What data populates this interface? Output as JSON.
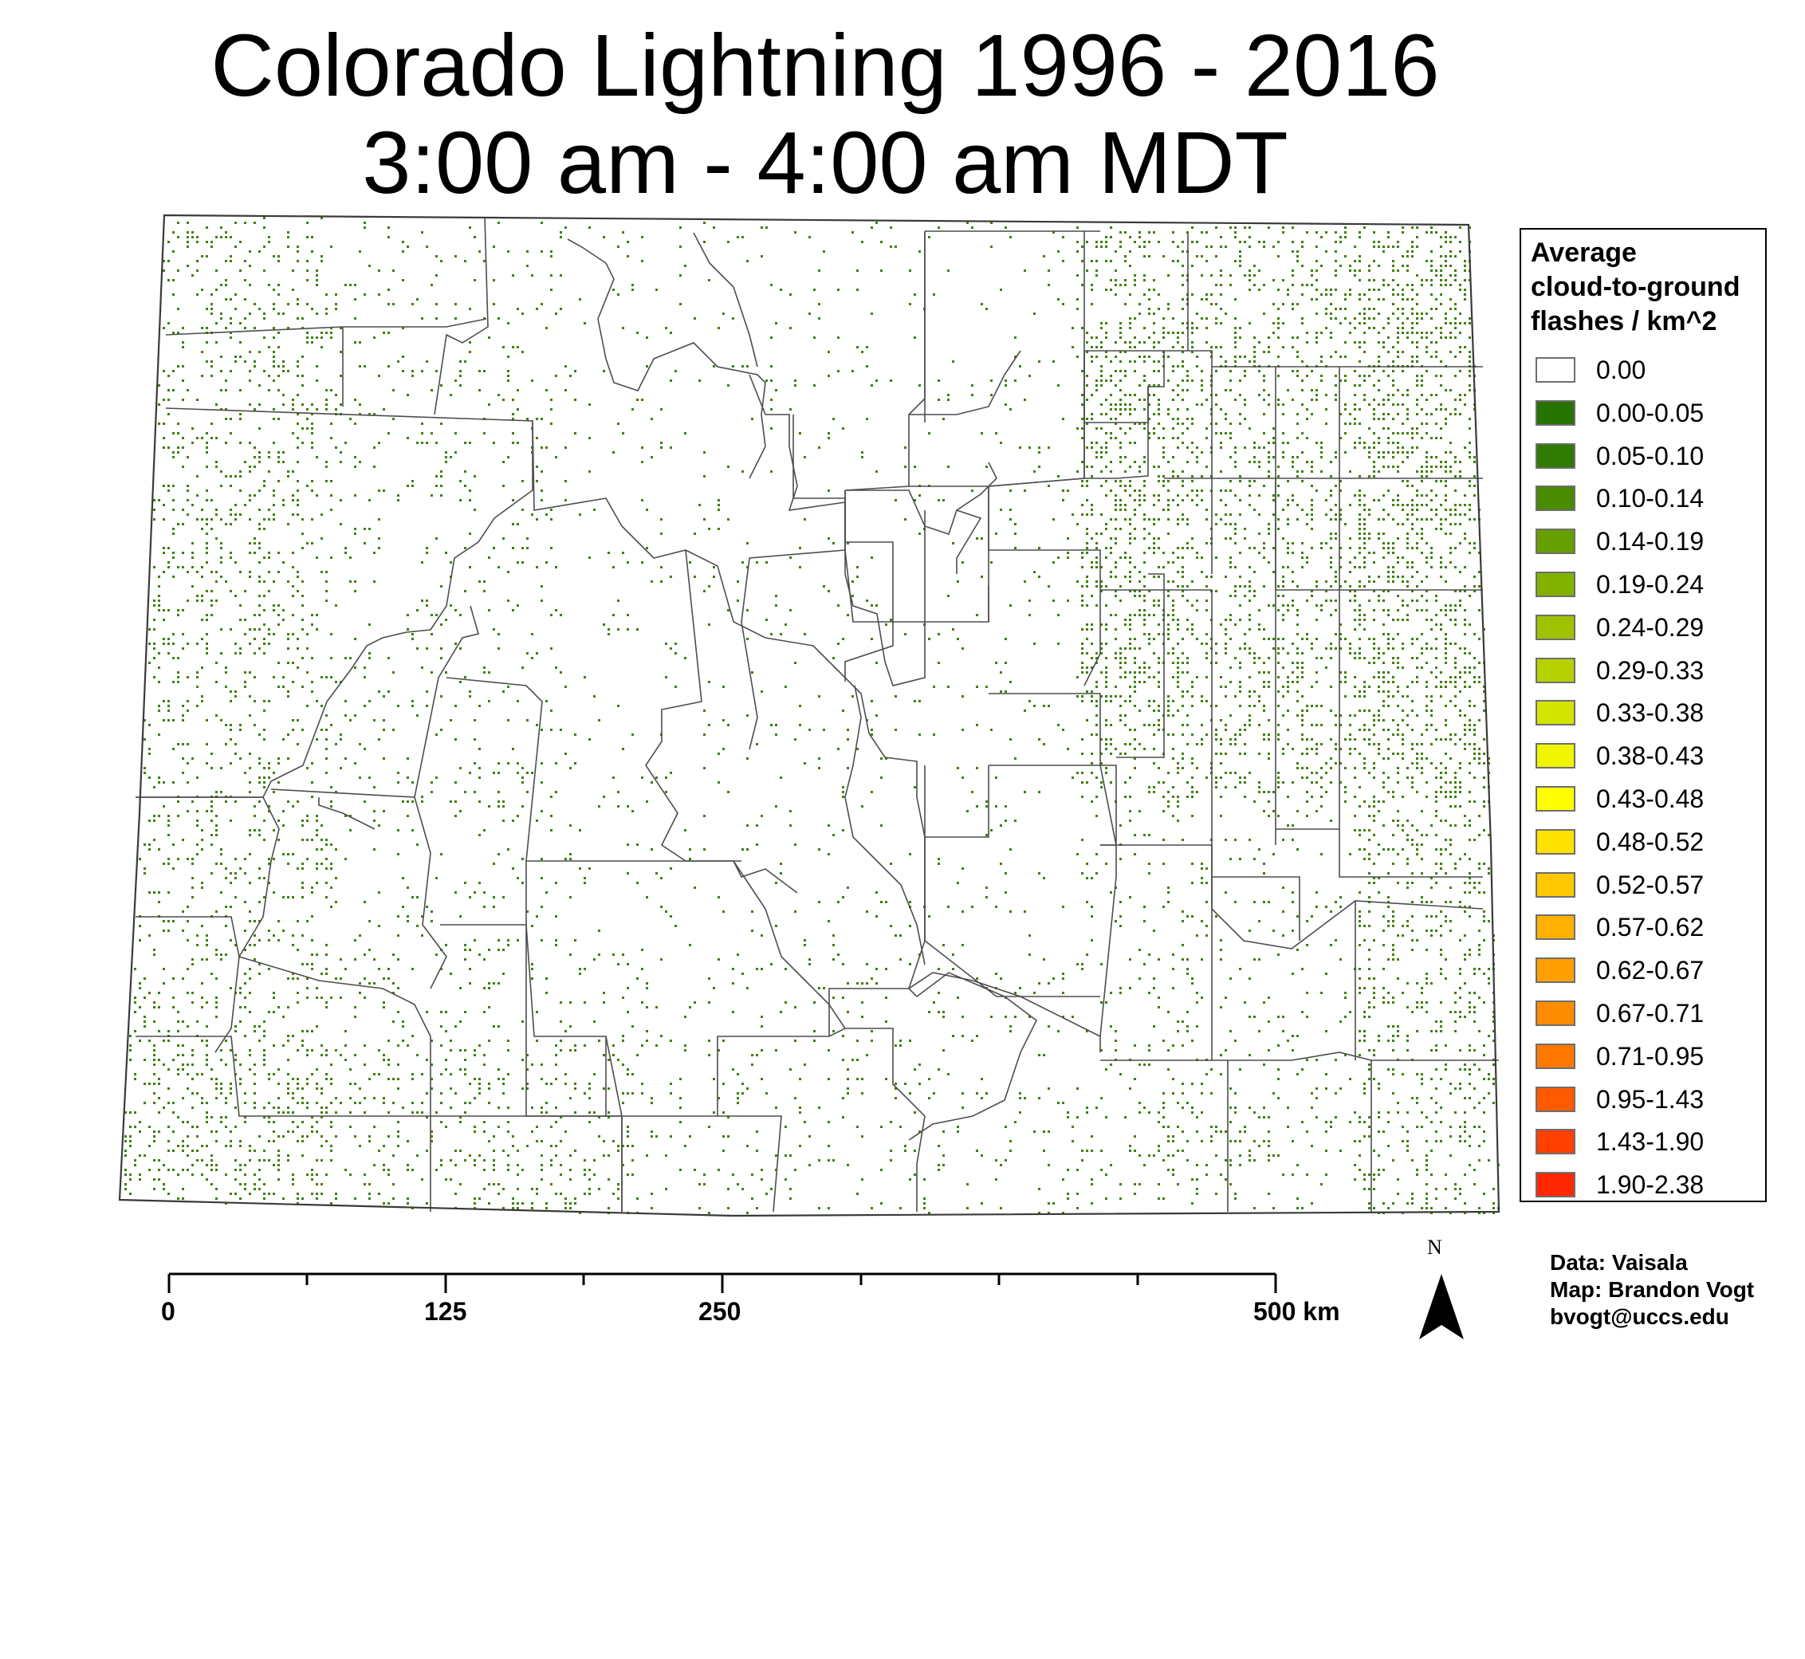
{
  "title": {
    "line1": "Colorado Lightning 1996 - 2016",
    "line2": "3:00 am - 4:00 am MDT"
  },
  "legend": {
    "title_lines": [
      "Average",
      "cloud-to-ground",
      "flashes / km^2"
    ],
    "items": [
      {
        "label": "0.00",
        "color": "#ffffff"
      },
      {
        "label": "0.00-0.05",
        "color": "#267300"
      },
      {
        "label": "0.05-0.10",
        "color": "#2f7a00"
      },
      {
        "label": "0.10-0.14",
        "color": "#4a8a00"
      },
      {
        "label": "0.14-0.19",
        "color": "#66a000"
      },
      {
        "label": "0.19-0.24",
        "color": "#82b100"
      },
      {
        "label": "0.24-0.29",
        "color": "#9fc300"
      },
      {
        "label": "0.29-0.33",
        "color": "#b5d100"
      },
      {
        "label": "0.33-0.38",
        "color": "#d2e400"
      },
      {
        "label": "0.38-0.43",
        "color": "#f0f500"
      },
      {
        "label": "0.43-0.48",
        "color": "#ffff00"
      },
      {
        "label": "0.48-0.52",
        "color": "#ffe100"
      },
      {
        "label": "0.52-0.57",
        "color": "#ffc800"
      },
      {
        "label": "0.57-0.62",
        "color": "#ffb000"
      },
      {
        "label": "0.62-0.67",
        "color": "#ffa000"
      },
      {
        "label": "0.67-0.71",
        "color": "#ff8c00"
      },
      {
        "label": "0.71-0.95",
        "color": "#ff7800"
      },
      {
        "label": "0.95-1.43",
        "color": "#ff5a00"
      },
      {
        "label": "1.43-1.90",
        "color": "#ff4000"
      },
      {
        "label": "1.90-2.38",
        "color": "#ff2800"
      }
    ]
  },
  "scale_bar": {
    "labels": [
      "0",
      "125",
      "250",
      "500 km"
    ]
  },
  "north_arrow": {
    "label": "N",
    "icon": "north-arrow-icon"
  },
  "credits": {
    "data": "Data: Vaisala",
    "map": "Map: Brandon Vogt",
    "email": "bvogt@uccs.edu"
  },
  "colors": {
    "flash_dot": "#3f7f08",
    "county_line": "#4d4d4d",
    "state_outline": "#3a3a3a"
  }
}
